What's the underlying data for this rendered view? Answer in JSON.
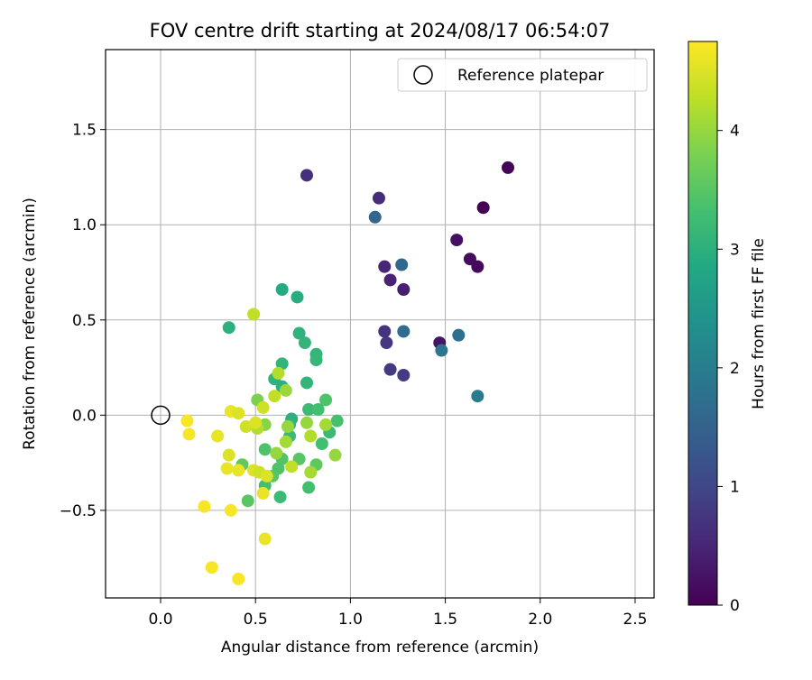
{
  "chart_data": {
    "type": "scatter",
    "title": "FOV centre drift starting at 2024/08/17 06:54:07",
    "xlabel": "Angular distance from reference (arcmin)",
    "ylabel": "Rotation from reference (arcmin)",
    "xlim": [
      -0.29,
      2.6
    ],
    "ylim": [
      -0.96,
      1.92
    ],
    "xticks": [
      "0.0",
      "0.5",
      "1.0",
      "1.5",
      "2.0",
      "2.5"
    ],
    "xtick_values": [
      0.0,
      0.5,
      1.0,
      1.5,
      2.0,
      2.5
    ],
    "yticks": [
      "−0.5",
      "0.0",
      "0.5",
      "1.0",
      "1.5"
    ],
    "ytick_values": [
      -0.5,
      0.0,
      0.5,
      1.0,
      1.5
    ],
    "grid": true,
    "legend": {
      "position": "upper-right",
      "entries": [
        "Reference platepar"
      ]
    },
    "reference_point": {
      "x": 0.0,
      "y": 0.0
    },
    "colorbar": {
      "label": "Hours from first FF file",
      "range": [
        0,
        4.75
      ],
      "ticks": [
        "0",
        "1",
        "2",
        "3",
        "4"
      ],
      "tick_values": [
        0,
        1,
        2,
        3,
        4
      ],
      "colormap": "viridis"
    },
    "points": [
      {
        "x": 1.83,
        "y": 1.3,
        "h": 0.05
      },
      {
        "x": 1.7,
        "y": 1.09,
        "h": 0.05
      },
      {
        "x": 1.67,
        "y": 0.78,
        "h": 0.1
      },
      {
        "x": 1.63,
        "y": 0.82,
        "h": 0.15
      },
      {
        "x": 1.56,
        "y": 0.92,
        "h": 0.2
      },
      {
        "x": 1.47,
        "y": 0.38,
        "h": 0.25
      },
      {
        "x": 1.28,
        "y": 0.66,
        "h": 0.4
      },
      {
        "x": 1.21,
        "y": 0.71,
        "h": 0.45
      },
      {
        "x": 1.18,
        "y": 0.78,
        "h": 0.5
      },
      {
        "x": 1.15,
        "y": 1.14,
        "h": 0.6
      },
      {
        "x": 0.77,
        "y": 1.26,
        "h": 0.65
      },
      {
        "x": 1.18,
        "y": 0.44,
        "h": 0.7
      },
      {
        "x": 1.19,
        "y": 0.38,
        "h": 0.75
      },
      {
        "x": 1.21,
        "y": 0.24,
        "h": 0.8
      },
      {
        "x": 1.28,
        "y": 0.21,
        "h": 0.85
      },
      {
        "x": 1.13,
        "y": 1.04,
        "h": 1.55
      },
      {
        "x": 1.27,
        "y": 0.79,
        "h": 1.6
      },
      {
        "x": 1.28,
        "y": 0.44,
        "h": 1.7
      },
      {
        "x": 1.57,
        "y": 0.42,
        "h": 1.75
      },
      {
        "x": 1.48,
        "y": 0.34,
        "h": 1.85
      },
      {
        "x": 1.67,
        "y": 0.1,
        "h": 1.95
      },
      {
        "x": 0.64,
        "y": 0.66,
        "h": 2.9
      },
      {
        "x": 0.72,
        "y": 0.62,
        "h": 2.95
      },
      {
        "x": 0.36,
        "y": 0.46,
        "h": 3.0
      },
      {
        "x": 0.73,
        "y": 0.43,
        "h": 3.05
      },
      {
        "x": 0.76,
        "y": 0.38,
        "h": 3.1
      },
      {
        "x": 0.82,
        "y": 0.32,
        "h": 3.1
      },
      {
        "x": 0.82,
        "y": 0.29,
        "h": 3.15
      },
      {
        "x": 0.64,
        "y": 0.27,
        "h": 3.1
      },
      {
        "x": 0.6,
        "y": 0.19,
        "h": 3.05
      },
      {
        "x": 0.64,
        "y": 0.15,
        "h": 3.0
      },
      {
        "x": 0.77,
        "y": 0.17,
        "h": 3.1
      },
      {
        "x": 0.78,
        "y": 0.03,
        "h": 3.2
      },
      {
        "x": 0.83,
        "y": 0.03,
        "h": 3.3
      },
      {
        "x": 0.87,
        "y": 0.08,
        "h": 3.4
      },
      {
        "x": 0.69,
        "y": -0.02,
        "h": 3.0
      },
      {
        "x": 0.68,
        "y": -0.05,
        "h": 3.1
      },
      {
        "x": 0.93,
        "y": -0.03,
        "h": 3.35
      },
      {
        "x": 0.89,
        "y": -0.09,
        "h": 3.2
      },
      {
        "x": 0.68,
        "y": -0.11,
        "h": 3.2
      },
      {
        "x": 0.85,
        "y": -0.15,
        "h": 3.3
      },
      {
        "x": 0.55,
        "y": -0.18,
        "h": 3.4
      },
      {
        "x": 0.64,
        "y": -0.23,
        "h": 3.45
      },
      {
        "x": 0.73,
        "y": -0.23,
        "h": 3.5
      },
      {
        "x": 0.82,
        "y": -0.26,
        "h": 3.55
      },
      {
        "x": 0.62,
        "y": -0.28,
        "h": 3.4
      },
      {
        "x": 0.43,
        "y": -0.26,
        "h": 3.6
      },
      {
        "x": 0.59,
        "y": -0.32,
        "h": 3.5
      },
      {
        "x": 0.55,
        "y": -0.37,
        "h": 3.3
      },
      {
        "x": 0.63,
        "y": -0.43,
        "h": 3.2
      },
      {
        "x": 0.78,
        "y": -0.38,
        "h": 3.3
      },
      {
        "x": 0.46,
        "y": -0.45,
        "h": 3.5
      },
      {
        "x": 0.51,
        "y": 0.08,
        "h": 3.8
      },
      {
        "x": 0.66,
        "y": 0.13,
        "h": 4.05
      },
      {
        "x": 0.62,
        "y": 0.22,
        "h": 4.2
      },
      {
        "x": 0.49,
        "y": 0.53,
        "h": 4.3
      },
      {
        "x": 0.6,
        "y": 0.1,
        "h": 4.3
      },
      {
        "x": 0.54,
        "y": 0.04,
        "h": 4.4
      },
      {
        "x": 0.55,
        "y": -0.05,
        "h": 3.9
      },
      {
        "x": 0.51,
        "y": -0.07,
        "h": 4.2
      },
      {
        "x": 0.67,
        "y": -0.06,
        "h": 4.0
      },
      {
        "x": 0.77,
        "y": -0.04,
        "h": 4.0
      },
      {
        "x": 0.87,
        "y": -0.05,
        "h": 4.1
      },
      {
        "x": 0.66,
        "y": -0.14,
        "h": 4.1
      },
      {
        "x": 0.79,
        "y": -0.11,
        "h": 4.2
      },
      {
        "x": 0.61,
        "y": -0.2,
        "h": 4.0
      },
      {
        "x": 0.92,
        "y": -0.21,
        "h": 4.0
      },
      {
        "x": 0.69,
        "y": -0.27,
        "h": 4.3
      },
      {
        "x": 0.79,
        "y": -0.3,
        "h": 4.1
      },
      {
        "x": 0.45,
        "y": -0.06,
        "h": 4.4
      },
      {
        "x": 0.5,
        "y": -0.04,
        "h": 4.5
      },
      {
        "x": 0.37,
        "y": 0.02,
        "h": 4.6
      },
      {
        "x": 0.41,
        "y": 0.01,
        "h": 4.5
      },
      {
        "x": 0.14,
        "y": -0.03,
        "h": 4.7
      },
      {
        "x": 0.15,
        "y": -0.1,
        "h": 4.7
      },
      {
        "x": 0.3,
        "y": -0.11,
        "h": 4.6
      },
      {
        "x": 0.36,
        "y": -0.21,
        "h": 4.5
      },
      {
        "x": 0.35,
        "y": -0.28,
        "h": 4.6
      },
      {
        "x": 0.41,
        "y": -0.29,
        "h": 4.6
      },
      {
        "x": 0.49,
        "y": -0.29,
        "h": 4.5
      },
      {
        "x": 0.52,
        "y": -0.3,
        "h": 4.4
      },
      {
        "x": 0.56,
        "y": -0.32,
        "h": 4.5
      },
      {
        "x": 0.54,
        "y": -0.41,
        "h": 4.6
      },
      {
        "x": 0.23,
        "y": -0.48,
        "h": 4.7
      },
      {
        "x": 0.37,
        "y": -0.5,
        "h": 4.7
      },
      {
        "x": 0.55,
        "y": -0.65,
        "h": 4.6
      },
      {
        "x": 0.27,
        "y": -0.8,
        "h": 4.7
      },
      {
        "x": 0.41,
        "y": -0.86,
        "h": 4.7
      }
    ]
  }
}
